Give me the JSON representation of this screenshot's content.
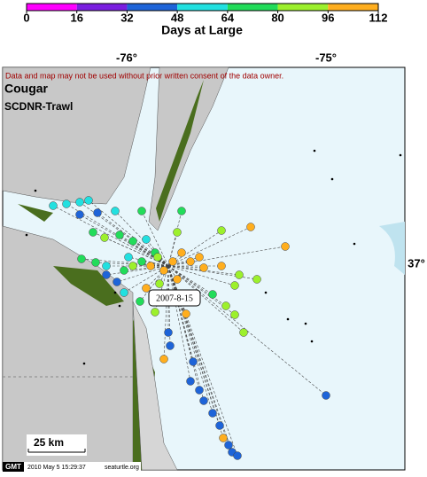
{
  "colorbar": {
    "label": "Days at Large",
    "ticks": [
      0,
      16,
      32,
      48,
      64,
      80,
      96,
      112
    ],
    "colors": [
      "#ff00ff",
      "#7a1ee0",
      "#1e64d8",
      "#22e0e0",
      "#22dc5a",
      "#9cf02c",
      "#ffae1e"
    ]
  },
  "map": {
    "top_ticks": [
      "-76°",
      "-75°"
    ],
    "right_ticks": [
      "37°"
    ],
    "notice": "Data and map may not be used without prior written consent of the data owner.",
    "title": "Cougar",
    "subtitle": "SCDNR-Trawl",
    "release_label": "2007-8-15",
    "scale": "25 km",
    "footer": {
      "logo": "GMT",
      "timestamp": "2010 May  5 15:29:37",
      "site": "seaturtle.org"
    }
  }
}
